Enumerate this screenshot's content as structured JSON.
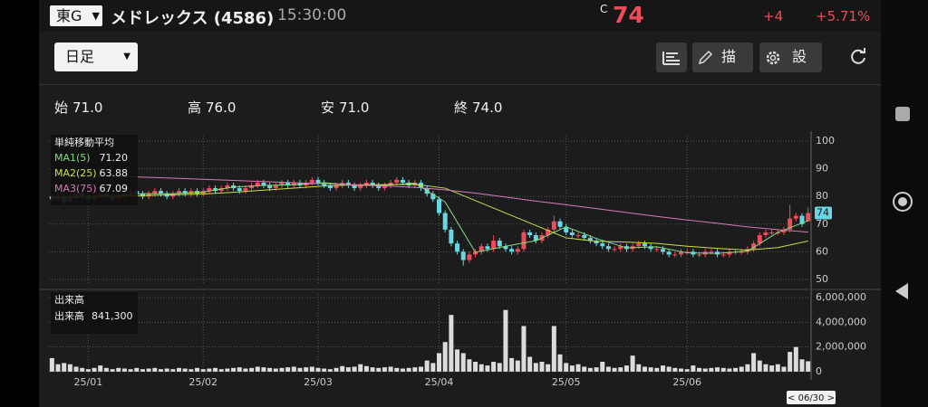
{
  "header": {
    "market": "東G",
    "name": "メドレックス (4586)",
    "time": "15:30:00",
    "flag": "C",
    "price": "74",
    "change": "+4",
    "change_pct": "+5.71%"
  },
  "toolbar": {
    "period": "日足",
    "draw": "描画",
    "settings": "設定"
  },
  "ohlc": [
    {
      "label": "始",
      "value": "71.0"
    },
    {
      "label": "高",
      "value": "76.0"
    },
    {
      "label": "安",
      "value": "71.0"
    },
    {
      "label": "終",
      "value": "74.0"
    }
  ],
  "chart_data": [
    {
      "type": "candlestick",
      "up_color": "#ef4b5a",
      "down_color": "#68d6e4",
      "grid": true,
      "ylim": [
        48,
        102
      ],
      "yticks": [
        100,
        90,
        80,
        70,
        60,
        50
      ],
      "legend_title": "単純移動平均",
      "open": [
        80,
        79,
        80,
        78,
        80,
        81,
        80,
        79,
        80,
        81,
        80,
        79,
        80,
        81,
        82,
        81,
        80,
        81,
        82,
        81,
        80,
        81,
        82,
        81,
        82,
        81,
        82,
        83,
        82,
        83,
        84,
        83,
        82,
        83,
        84,
        85,
        84,
        83,
        84,
        85,
        84,
        85,
        84,
        85,
        86,
        85,
        84,
        83,
        84,
        85,
        84,
        83,
        84,
        85,
        84,
        83,
        84,
        85,
        86,
        85,
        84,
        85,
        83,
        81,
        79,
        74,
        68,
        63,
        60,
        57,
        59,
        60,
        62,
        61,
        64,
        62,
        61,
        60,
        61,
        67,
        66,
        64,
        66,
        68,
        71,
        69,
        67,
        66,
        66,
        65,
        64,
        63,
        62,
        61,
        61,
        62,
        61,
        62,
        63,
        62,
        61,
        61,
        60,
        59,
        59,
        60,
        60,
        59,
        59,
        60,
        60,
        59,
        59,
        60,
        60,
        60,
        61,
        63,
        66,
        67,
        67,
        67,
        68,
        72,
        73,
        71
      ],
      "high": [
        81,
        81,
        81,
        81,
        82,
        82,
        81,
        81,
        82,
        82,
        81,
        81,
        82,
        83,
        83,
        82,
        82,
        83,
        83,
        82,
        82,
        83,
        83,
        83,
        83,
        83,
        84,
        84,
        84,
        85,
        85,
        84,
        84,
        85,
        86,
        86,
        85,
        85,
        86,
        86,
        86,
        86,
        86,
        87,
        87,
        86,
        85,
        85,
        86,
        86,
        85,
        85,
        86,
        86,
        85,
        85,
        86,
        87,
        87,
        86,
        86,
        86,
        84,
        82,
        80,
        75,
        69,
        64,
        61,
        60,
        61,
        63,
        63,
        66,
        65,
        63,
        62,
        62,
        68,
        68,
        67,
        67,
        69,
        73,
        72,
        70,
        68,
        67,
        67,
        66,
        65,
        64,
        63,
        62,
        63,
        63,
        63,
        64,
        64,
        63,
        62,
        62,
        61,
        60,
        61,
        61,
        61,
        60,
        61,
        61,
        61,
        60,
        61,
        61,
        61,
        62,
        64,
        67,
        68,
        68,
        68,
        69,
        77,
        74,
        74,
        76
      ],
      "low": [
        78,
        78,
        77,
        77,
        79,
        79,
        78,
        78,
        79,
        79,
        78,
        78,
        79,
        80,
        80,
        79,
        79,
        80,
        80,
        79,
        79,
        80,
        80,
        80,
        80,
        80,
        81,
        81,
        81,
        82,
        82,
        81,
        81,
        82,
        83,
        83,
        82,
        82,
        83,
        83,
        83,
        83,
        83,
        84,
        84,
        83,
        82,
        82,
        83,
        83,
        82,
        82,
        83,
        83,
        82,
        82,
        83,
        84,
        84,
        83,
        83,
        82,
        80,
        78,
        73,
        67,
        62,
        59,
        55,
        56,
        58,
        59,
        60,
        60,
        61,
        60,
        59,
        59,
        60,
        65,
        63,
        63,
        65,
        67,
        68,
        66,
        65,
        65,
        64,
        63,
        62,
        61,
        60,
        60,
        60,
        60,
        60,
        61,
        61,
        60,
        60,
        59,
        58,
        58,
        58,
        59,
        58,
        58,
        58,
        59,
        58,
        58,
        58,
        59,
        59,
        59,
        60,
        62,
        65,
        66,
        66,
        66,
        67,
        71,
        69,
        71
      ],
      "close": [
        79,
        80,
        78,
        80,
        81,
        80,
        79,
        80,
        81,
        80,
        79,
        80,
        81,
        82,
        81,
        80,
        81,
        82,
        81,
        80,
        81,
        82,
        81,
        82,
        81,
        82,
        83,
        82,
        83,
        84,
        83,
        82,
        83,
        84,
        85,
        84,
        83,
        84,
        85,
        84,
        85,
        84,
        85,
        86,
        85,
        84,
        83,
        84,
        85,
        84,
        83,
        84,
        85,
        84,
        83,
        84,
        85,
        86,
        85,
        84,
        85,
        83,
        81,
        79,
        74,
        68,
        63,
        60,
        57,
        59,
        60,
        62,
        61,
        64,
        62,
        61,
        60,
        61,
        67,
        66,
        64,
        66,
        68,
        71,
        69,
        67,
        66,
        66,
        65,
        64,
        63,
        62,
        61,
        61,
        62,
        61,
        62,
        63,
        62,
        61,
        61,
        60,
        59,
        59,
        60,
        60,
        59,
        59,
        60,
        60,
        59,
        59,
        60,
        60,
        60,
        61,
        63,
        66,
        67,
        67,
        67,
        68,
        72,
        73,
        70,
        74
      ],
      "series": [
        {
          "name": "MA1(5)",
          "color": "#7ee07e",
          "current": "71.20",
          "x": [
            0,
            5,
            10,
            15,
            20,
            25,
            30,
            35,
            40,
            45,
            50,
            55,
            60,
            65,
            70,
            75,
            80,
            85,
            90,
            95,
            100,
            105,
            110,
            115,
            120,
            125
          ],
          "values": [
            79.5,
            79.8,
            80.2,
            81,
            81,
            81.6,
            83.4,
            84,
            84.2,
            85,
            84,
            84,
            84.8,
            78,
            59.8,
            62,
            64,
            69,
            64.8,
            61.4,
            61.8,
            59.6,
            59.4,
            60.2,
            67,
            71.2
          ]
        },
        {
          "name": "MA2(25)",
          "color": "#c8e04a",
          "current": "63.88",
          "x": [
            0,
            5,
            10,
            15,
            20,
            25,
            30,
            35,
            40,
            45,
            50,
            55,
            60,
            65,
            70,
            75,
            80,
            85,
            90,
            95,
            100,
            105,
            110,
            115,
            120,
            125
          ],
          "values": [
            80,
            80,
            80,
            80.3,
            80.6,
            80.9,
            81.5,
            82.3,
            83,
            83.8,
            84.2,
            84.3,
            84.4,
            83,
            78.5,
            74,
            69.5,
            65,
            63.8,
            63.5,
            63,
            62,
            61.2,
            60.6,
            61.5,
            63.88
          ]
        },
        {
          "name": "MA3(75)",
          "color": "#d87ab8",
          "current": "67.09",
          "x": [
            0,
            5,
            10,
            15,
            20,
            25,
            30,
            35,
            40,
            45,
            50,
            55,
            60,
            65,
            70,
            75,
            80,
            85,
            90,
            95,
            100,
            105,
            110,
            115,
            120,
            125
          ],
          "values": [
            88,
            87.7,
            87.4,
            87,
            86.6,
            86.2,
            85.8,
            85.4,
            85,
            84.6,
            84.2,
            83.8,
            83.3,
            82.4,
            81.2,
            79.8,
            78.3,
            77,
            75.6,
            74.2,
            72.8,
            71.5,
            70.3,
            69,
            68,
            67.09
          ]
        }
      ]
    },
    {
      "type": "bar",
      "title": "出来高",
      "legend_name": "出来高",
      "current": "841,300",
      "color": "#dcdcdc",
      "grid": true,
      "ylim": [
        -300000,
        6300000
      ],
      "yticks": [
        {
          "value": 6000000,
          "label": "6,000,000"
        },
        {
          "value": 4000000,
          "label": "4,000,000"
        },
        {
          "value": 2000000,
          "label": "2,000,000"
        },
        0
      ],
      "xlim": [
        -0.5,
        125.5
      ],
      "xticks": [
        {
          "value": 6,
          "label": "25/01"
        },
        {
          "value": 25,
          "label": "25/02"
        },
        {
          "value": 44,
          "label": "25/03"
        },
        {
          "value": 64,
          "label": "25/04"
        },
        {
          "value": 85,
          "label": "25/05"
        },
        {
          "value": 105,
          "label": "25/06"
        }
      ],
      "cursor_label": "< 06/30 >",
      "values": [
        1100000,
        600000,
        700000,
        600000,
        400000,
        300000,
        200000,
        300000,
        500000,
        300000,
        200000,
        300000,
        250000,
        200000,
        300000,
        200000,
        250000,
        300000,
        200000,
        250000,
        200000,
        300000,
        250000,
        200000,
        300000,
        200000,
        250000,
        300000,
        200000,
        250000,
        300000,
        350000,
        250000,
        300000,
        400000,
        350000,
        300000,
        250000,
        300000,
        350000,
        400000,
        300000,
        350000,
        400000,
        300000,
        250000,
        200000,
        300000,
        450000,
        350000,
        400000,
        600000,
        450000,
        350000,
        300000,
        350000,
        400000,
        300000,
        250000,
        300000,
        350000,
        400000,
        900000,
        700000,
        1500000,
        2400000,
        4600000,
        1800000,
        1500000,
        1000000,
        800000,
        600000,
        500000,
        800000,
        700000,
        5000000,
        1100000,
        900000,
        3700000,
        1200000,
        700000,
        800000,
        600000,
        3700000,
        1400000,
        700000,
        500000,
        600000,
        400000,
        300000,
        350000,
        800000,
        400000,
        300000,
        350000,
        500000,
        1300000,
        600000,
        400000,
        350000,
        300000,
        500000,
        400000,
        300000,
        250000,
        200000,
        500000,
        300000,
        250000,
        300000,
        350000,
        300000,
        250000,
        300000,
        400000,
        600000,
        1500000,
        900000,
        600000,
        500000,
        600000,
        400000,
        1600000,
        2000000,
        1000000,
        841300
      ]
    }
  ]
}
